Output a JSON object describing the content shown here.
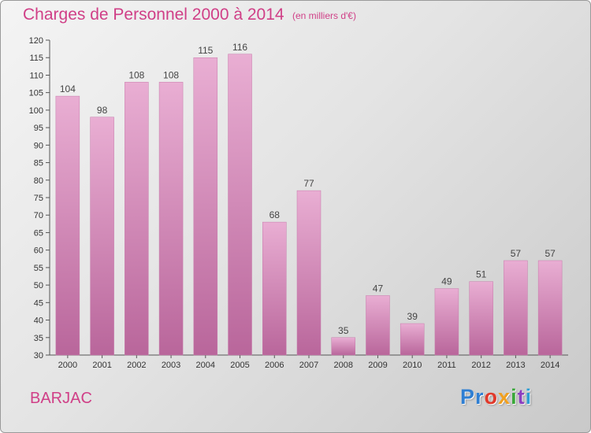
{
  "title": "Charges de Personnel 2000 à 2014",
  "subtitle": "(en milliers d'€)",
  "town": "BARJAC",
  "logo": {
    "p1": "Pr",
    "p2": "o",
    "p3": "x",
    "p4": "i",
    "p5": "t",
    "p6": "i"
  },
  "chart_data": {
    "type": "bar",
    "categories": [
      "2000",
      "2001",
      "2002",
      "2003",
      "2004",
      "2005",
      "2006",
      "2007",
      "2008",
      "2009",
      "2010",
      "2011",
      "2012",
      "2013",
      "2014"
    ],
    "values": [
      104,
      98,
      108,
      108,
      115,
      116,
      68,
      77,
      35,
      47,
      39,
      49,
      51,
      57,
      57
    ],
    "ylim": [
      30,
      120
    ],
    "ytick_step": 5,
    "grid": false,
    "bar_color": "#d590bc",
    "title": "Charges de Personnel 2000 à 2014",
    "subtitle": "(en milliers d'€)"
  }
}
